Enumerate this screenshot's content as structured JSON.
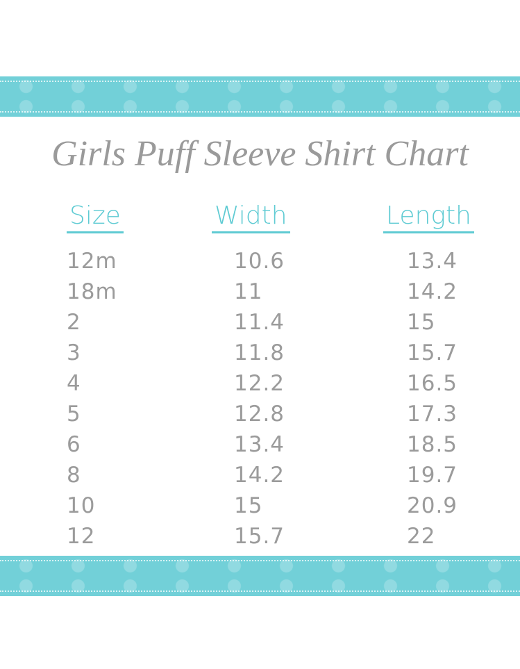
{
  "title": "Girls Puff Sleeve Shirt Chart",
  "colors": {
    "ribbon": "#72d0d8",
    "header": "#5fcbd3",
    "text": "#9b9b9b"
  },
  "headers": [
    "Size",
    "Width",
    "Length"
  ],
  "sizes": [
    "12m",
    "18m",
    "2",
    "3",
    "4",
    "5",
    "6",
    "8",
    "10",
    "12"
  ],
  "widths": [
    "10.6",
    "11",
    "11.4",
    "11.8",
    "12.2",
    "12.8",
    "13.4",
    "14.2",
    "15",
    "15.7"
  ],
  "lengths": [
    "13.4",
    "14.2",
    "15",
    "15.7",
    "16.5",
    "17.3",
    "18.5",
    "19.7",
    "20.9",
    "22"
  ]
}
